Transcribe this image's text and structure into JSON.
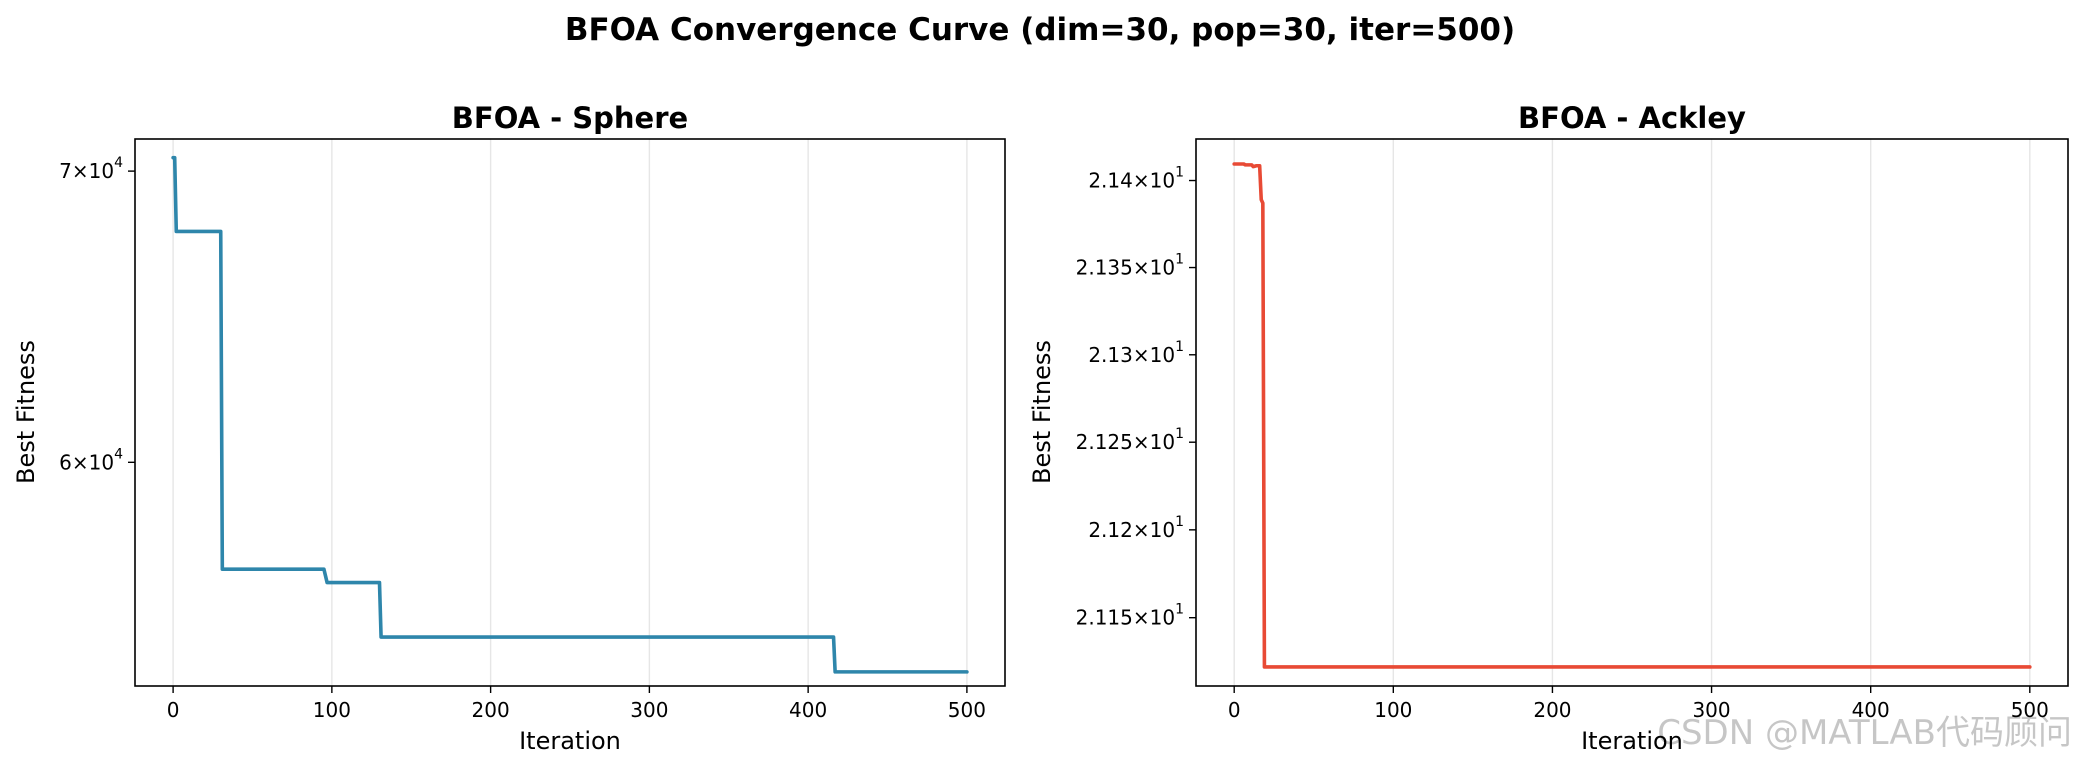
{
  "figure": {
    "title": "BFOA Convergence Curve (dim=30, pop=30, iter=500)",
    "watermark": "CSDN @MATLAB代码顾问"
  },
  "chart_data": [
    {
      "type": "line",
      "title": "BFOA - Sphere",
      "xlabel": "Iteration",
      "ylabel": "Best Fitness",
      "yscale": "log",
      "xlim": [
        -24,
        524
      ],
      "ylim": [
        53300,
        71200
      ],
      "xticks": [
        0,
        100,
        200,
        300,
        400,
        500
      ],
      "yticks": [
        {
          "value": 70000,
          "mantissa": "7",
          "base": "10",
          "exp": "4"
        },
        {
          "value": 60000,
          "mantissa": "6",
          "base": "10",
          "exp": "4"
        }
      ],
      "grid": "vertical",
      "series": [
        {
          "color": "#2e86ab",
          "points": [
            [
              0,
              70500
            ],
            [
              1,
              70500
            ],
            [
              2,
              67800
            ],
            [
              30,
              67800
            ],
            [
              31,
              56700
            ],
            [
              95,
              56700
            ],
            [
              97,
              56300
            ],
            [
              130,
              56300
            ],
            [
              131,
              54700
            ],
            [
              416,
              54700
            ],
            [
              417,
              53700
            ],
            [
              500,
              53700
            ]
          ]
        }
      ]
    },
    {
      "type": "line",
      "title": "BFOA - Ackley",
      "xlabel": "Iteration",
      "ylabel": "Best Fitness",
      "yscale": "log",
      "xlim": [
        -24,
        524
      ],
      "ylim": [
        21.1112,
        21.4239
      ],
      "xticks": [
        0,
        100,
        200,
        300,
        400,
        500
      ],
      "yticks": [
        {
          "value": 21.4,
          "mantissa": "2.14",
          "base": "10",
          "exp": "1"
        },
        {
          "value": 21.35,
          "mantissa": "2.135",
          "base": "10",
          "exp": "1"
        },
        {
          "value": 21.3,
          "mantissa": "2.13",
          "base": "10",
          "exp": "1"
        },
        {
          "value": 21.25,
          "mantissa": "2.125",
          "base": "10",
          "exp": "1"
        },
        {
          "value": 21.2,
          "mantissa": "2.12",
          "base": "10",
          "exp": "1"
        },
        {
          "value": 21.15,
          "mantissa": "2.115",
          "base": "10",
          "exp": "1"
        }
      ],
      "grid": "vertical",
      "series": [
        {
          "color": "#e84a35",
          "points": [
            [
              0,
              21.4095
            ],
            [
              6,
              21.4095
            ],
            [
              7,
              21.409
            ],
            [
              11,
              21.409
            ],
            [
              12,
              21.408
            ],
            [
              14,
              21.4085
            ],
            [
              16,
              21.4085
            ],
            [
              17,
              21.389
            ],
            [
              18,
              21.387
            ],
            [
              19,
              21.122
            ],
            [
              500,
              21.122
            ]
          ]
        }
      ]
    }
  ]
}
